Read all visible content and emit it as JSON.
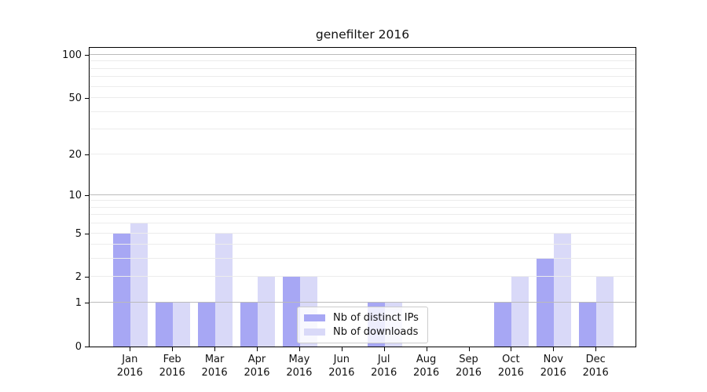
{
  "title": "genefilter 2016",
  "legend": {
    "items": [
      {
        "label": "Nb of distinct IPs",
        "color": "#a7a7f4"
      },
      {
        "label": "Nb of downloads",
        "color": "#d9d9f8"
      }
    ]
  },
  "colors": {
    "distinct_ips_bar": "#a7a7f4",
    "downloads_bar": "#d9d9f8",
    "major_gridline": "#bbbbbb",
    "minor_gridline": "#ececec",
    "axis": "#000000",
    "text": "#111111"
  },
  "chart_data": {
    "type": "bar",
    "title": "genefilter 2016",
    "categories": [
      "Jan 2016",
      "Feb 2016",
      "Mar 2016",
      "Apr 2016",
      "May 2016",
      "Jun 2016",
      "Jul 2016",
      "Aug 2016",
      "Sep 2016",
      "Oct 2016",
      "Nov 2016",
      "Dec 2016"
    ],
    "series": [
      {
        "name": "Nb of distinct IPs",
        "color": "#a7a7f4",
        "values": [
          5,
          1,
          1,
          1,
          2,
          0,
          1,
          0,
          0,
          1,
          3,
          1
        ]
      },
      {
        "name": "Nb of downloads",
        "color": "#d9d9f8",
        "values": [
          6,
          1,
          5,
          2,
          2,
          0,
          1,
          0,
          0,
          2,
          5,
          2
        ]
      }
    ],
    "xlabel": "",
    "ylabel": "",
    "y_scale": "log10(1+x)",
    "y_tick_labels": [
      0,
      1,
      2,
      5,
      10,
      20,
      50,
      100
    ],
    "major_gridlines": [
      1,
      10,
      100
    ],
    "minor_gridlines": [
      2,
      3,
      4,
      5,
      6,
      7,
      8,
      9,
      20,
      30,
      40,
      50,
      60,
      70,
      80,
      90
    ],
    "ylim": [
      0,
      115
    ],
    "grid": true,
    "legend_position": "lower center"
  }
}
